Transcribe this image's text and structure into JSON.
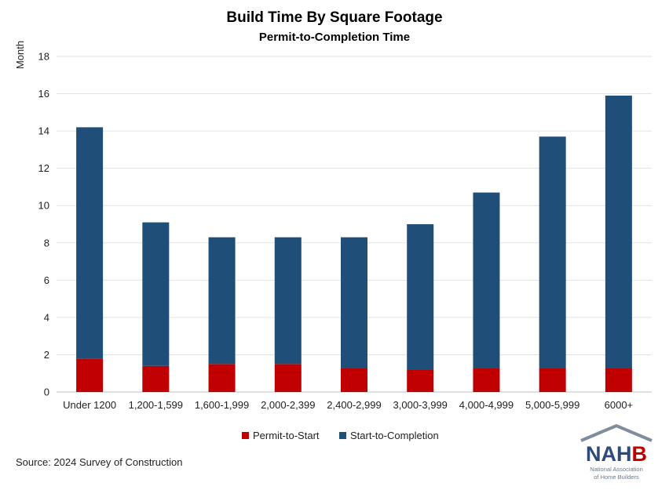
{
  "chart_data": {
    "type": "bar",
    "stacked": true,
    "title": "Build Time By Square Footage",
    "subtitle": "Permit-to-Completion Time",
    "ylabel": "Month",
    "xlabel": "",
    "ylim": [
      0,
      18
    ],
    "yticks": [
      0,
      2,
      4,
      6,
      8,
      10,
      12,
      14,
      16,
      18
    ],
    "grid": true,
    "legend_position": "bottom",
    "categories": [
      "Under 1200",
      "1,200-1,599",
      "1,600-1,999",
      "2,000-2,399",
      "2,400-2,999",
      "3,000-3,999",
      "4,000-4,999",
      "5,000-5,999",
      "6000+"
    ],
    "series": [
      {
        "name": "Permit-to-Start",
        "color": "#c00000",
        "values": [
          1.8,
          1.4,
          1.5,
          1.5,
          1.3,
          1.2,
          1.3,
          1.3,
          1.3
        ]
      },
      {
        "name": "Start-to-Completion",
        "color": "#1f4e79",
        "values": [
          12.4,
          7.7,
          6.8,
          6.8,
          7.0,
          7.8,
          9.4,
          12.4,
          14.6
        ]
      }
    ],
    "source": "Source: 2024 Survey of Construction"
  },
  "logo": {
    "name": "NAHB",
    "line1": "National Association",
    "line2": "of Home Builders",
    "color_blue": "#2e4a7a",
    "color_red": "#c00000",
    "color_gray": "#7f8c9d"
  }
}
